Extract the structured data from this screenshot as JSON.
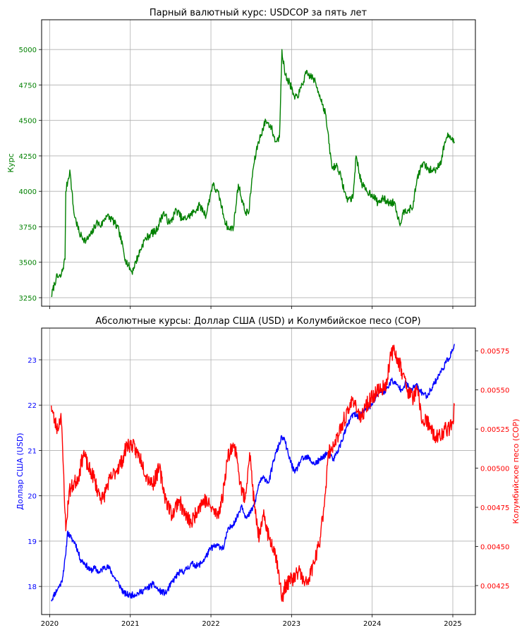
{
  "figure": {
    "top_title": "Парный валютный курс: USDCOP за пять лет",
    "bottom_title": "Абсолютные курсы: Доллар США (USD) и Колумбийское песо (COP)"
  },
  "chart_data": [
    {
      "type": "line",
      "title": "Парный валютный курс: USDCOP за пять лет",
      "xlabel": "",
      "ylabel": "Курс",
      "ylim": [
        3190,
        5210
      ],
      "yticks": [
        3250,
        3500,
        3750,
        4000,
        4250,
        4500,
        4750,
        5000
      ],
      "xlim": [
        2019.9,
        2025.28
      ],
      "xticks": [
        2020,
        2021,
        2022,
        2023,
        2024,
        2025
      ],
      "grid": true,
      "colors": {
        "line": "#008000",
        "ticks": "#008000",
        "ylabel": "#008000"
      },
      "series": [
        {
          "name": "USDCOP",
          "x": [
            2020.02,
            2020.08,
            2020.14,
            2020.19,
            2020.2,
            2020.25,
            2020.3,
            2020.37,
            2020.45,
            2020.52,
            2020.58,
            2020.64,
            2020.7,
            2020.78,
            2020.86,
            2020.94,
            2021.02,
            2021.1,
            2021.17,
            2021.25,
            2021.32,
            2021.41,
            2021.49,
            2021.57,
            2021.65,
            2021.72,
            2021.78,
            2021.86,
            2021.94,
            2022.02,
            2022.1,
            2022.17,
            2022.22,
            2022.28,
            2022.34,
            2022.42,
            2022.47,
            2022.52,
            2022.58,
            2022.62,
            2022.68,
            2022.75,
            2022.8,
            2022.85,
            2022.88,
            2022.92,
            2022.98,
            2023.04,
            2023.1,
            2023.18,
            2023.27,
            2023.35,
            2023.42,
            2023.5,
            2023.57,
            2023.62,
            2023.68,
            2023.76,
            2023.8,
            2023.87,
            2023.93,
            2024.0,
            2024.07,
            2024.14,
            2024.2,
            2024.28,
            2024.34,
            2024.4,
            2024.44,
            2024.5,
            2024.56,
            2024.63,
            2024.7,
            2024.78,
            2024.86,
            2024.9,
            2024.95,
            2025.0,
            2025.02
          ],
          "y": [
            3260,
            3390,
            3400,
            3520,
            4000,
            4150,
            3850,
            3700,
            3650,
            3700,
            3780,
            3760,
            3830,
            3800,
            3720,
            3520,
            3430,
            3550,
            3650,
            3700,
            3720,
            3850,
            3770,
            3870,
            3800,
            3820,
            3850,
            3900,
            3830,
            4050,
            3970,
            3800,
            3730,
            3750,
            4050,
            3860,
            3850,
            4150,
            4330,
            4400,
            4500,
            4450,
            4350,
            4380,
            5000,
            4820,
            4760,
            4650,
            4700,
            4830,
            4800,
            4680,
            4550,
            4170,
            4180,
            4080,
            3950,
            3950,
            4250,
            4050,
            4000,
            3980,
            3920,
            3950,
            3920,
            3920,
            3770,
            3870,
            3870,
            3880,
            4100,
            4200,
            4150,
            4150,
            4220,
            4350,
            4400,
            4350,
            4350
          ]
        }
      ]
    },
    {
      "type": "line",
      "title": "Абсолютные курсы: Доллар США (USD) и Колумбийское песо (COP)",
      "xlabel": "",
      "ylabel": "Доллар США (USD)",
      "ylabel_right": "Колумбийское песо (COP)",
      "xlim": [
        2019.9,
        2025.28
      ],
      "xticks": [
        2020,
        2021,
        2022,
        2023,
        2024,
        2025
      ],
      "ylim": [
        17.38,
        23.7
      ],
      "yticks": [
        18,
        19,
        20,
        21,
        22,
        23
      ],
      "ylim_right": [
        0.004065,
        0.005895
      ],
      "yticks_right": [
        0.00425,
        0.0045,
        0.00475,
        0.005,
        0.00525,
        0.0055,
        0.00575
      ],
      "grid": true,
      "colors": {
        "usd": "#0000ff",
        "cop": "#ff0000"
      },
      "series": [
        {
          "name": "Доллар США (USD)",
          "axis": "left",
          "x": [
            2020.02,
            2020.05,
            2020.1,
            2020.15,
            2020.2,
            2020.22,
            2020.27,
            2020.32,
            2020.38,
            2020.44,
            2020.5,
            2020.56,
            2020.62,
            2020.68,
            2020.74,
            2020.8,
            2020.86,
            2020.92,
            2021.0,
            2021.1,
            2021.2,
            2021.28,
            2021.36,
            2021.44,
            2021.52,
            2021.6,
            2021.68,
            2021.76,
            2021.84,
            2021.92,
            2022.0,
            2022.08,
            2022.16,
            2022.2,
            2022.26,
            2022.32,
            2022.38,
            2022.44,
            2022.48,
            2022.54,
            2022.6,
            2022.66,
            2022.72,
            2022.78,
            2022.84,
            2022.88,
            2022.92,
            2022.96,
            2023.04,
            2023.12,
            2023.2,
            2023.28,
            2023.36,
            2023.44,
            2023.52,
            2023.6,
            2023.68,
            2023.76,
            2023.84,
            2023.92,
            2024.0,
            2024.08,
            2024.16,
            2024.24,
            2024.3,
            2024.36,
            2024.42,
            2024.48,
            2024.54,
            2024.6,
            2024.68,
            2024.76,
            2024.84,
            2024.92,
            2025.0,
            2025.02
          ],
          "y": [
            17.7,
            17.8,
            17.95,
            18.1,
            18.7,
            19.2,
            19.05,
            18.95,
            18.6,
            18.5,
            18.35,
            18.4,
            18.3,
            18.45,
            18.4,
            18.2,
            18.05,
            17.85,
            17.8,
            17.85,
            17.95,
            18.05,
            17.9,
            17.85,
            18.1,
            18.3,
            18.35,
            18.5,
            18.45,
            18.6,
            18.85,
            18.9,
            18.85,
            19.2,
            19.35,
            19.5,
            19.8,
            19.5,
            19.6,
            19.8,
            20.3,
            20.4,
            20.3,
            20.8,
            21.1,
            21.3,
            21.2,
            20.9,
            20.5,
            20.8,
            20.85,
            20.7,
            20.8,
            20.95,
            20.8,
            21.1,
            21.5,
            21.8,
            21.75,
            21.9,
            22.0,
            22.3,
            22.3,
            22.55,
            22.45,
            22.35,
            22.5,
            22.3,
            22.45,
            22.3,
            22.2,
            22.45,
            22.7,
            22.95,
            23.2,
            23.35
          ]
        },
        {
          "name": "Колумбийское песо (COP)",
          "axis": "right",
          "x": [
            2020.02,
            2020.06,
            2020.1,
            2020.14,
            2020.17,
            2020.2,
            2020.24,
            2020.3,
            2020.36,
            2020.42,
            2020.48,
            2020.54,
            2020.6,
            2020.66,
            2020.72,
            2020.78,
            2020.84,
            2020.9,
            2020.96,
            2021.02,
            2021.08,
            2021.14,
            2021.2,
            2021.28,
            2021.36,
            2021.44,
            2021.52,
            2021.6,
            2021.68,
            2021.76,
            2021.84,
            2021.92,
            2022.0,
            2022.08,
            2022.14,
            2022.2,
            2022.26,
            2022.32,
            2022.36,
            2022.42,
            2022.48,
            2022.54,
            2022.6,
            2022.66,
            2022.72,
            2022.78,
            2022.84,
            2022.88,
            2022.92,
            2022.98,
            2023.04,
            2023.1,
            2023.16,
            2023.22,
            2023.28,
            2023.34,
            2023.4,
            2023.46,
            2023.52,
            2023.58,
            2023.64,
            2023.7,
            2023.76,
            2023.8,
            2023.86,
            2023.92,
            2024.0,
            2024.06,
            2024.12,
            2024.18,
            2024.22,
            2024.26,
            2024.32,
            2024.38,
            2024.44,
            2024.5,
            2024.56,
            2024.62,
            2024.68,
            2024.72,
            2024.78,
            2024.84,
            2024.9,
            2024.96,
            2025.0,
            2025.02
          ],
          "y": [
            0.0054,
            0.0053,
            0.00525,
            0.00535,
            0.005,
            0.0046,
            0.00485,
            0.0049,
            0.00495,
            0.0051,
            0.005,
            0.00495,
            0.00485,
            0.0048,
            0.0049,
            0.00495,
            0.005,
            0.00505,
            0.00515,
            0.00515,
            0.0051,
            0.00505,
            0.00495,
            0.0049,
            0.005,
            0.0048,
            0.0047,
            0.0048,
            0.0047,
            0.00465,
            0.00475,
            0.0048,
            0.00475,
            0.0047,
            0.0048,
            0.00505,
            0.00515,
            0.0051,
            0.0049,
            0.0048,
            0.0051,
            0.00475,
            0.00455,
            0.0047,
            0.00455,
            0.0045,
            0.00435,
            0.00415,
            0.00425,
            0.00428,
            0.0043,
            0.00435,
            0.00425,
            0.0043,
            0.0044,
            0.0045,
            0.00475,
            0.0051,
            0.00515,
            0.0052,
            0.0053,
            0.00535,
            0.00545,
            0.0054,
            0.0053,
            0.0054,
            0.00545,
            0.0055,
            0.0055,
            0.00555,
            0.0057,
            0.00575,
            0.0057,
            0.0056,
            0.0055,
            0.00545,
            0.0055,
            0.0053,
            0.0053,
            0.00525,
            0.0052,
            0.0052,
            0.00525,
            0.00525,
            0.0053,
            0.0054
          ]
        }
      ]
    }
  ]
}
